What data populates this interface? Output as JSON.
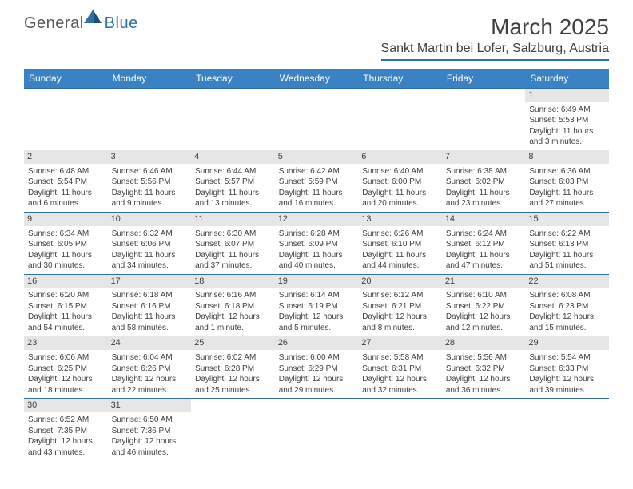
{
  "brand": {
    "text1": "General",
    "text2": "Blue"
  },
  "title": "March 2025",
  "location": "Sankt Martin bei Lofer, Salzburg, Austria",
  "colors": {
    "header_bg": "#3b82c4",
    "border": "#2f6fa8",
    "daynum_bg": "#e6e6e6",
    "text": "#404040",
    "background": "#ffffff"
  },
  "days_of_week": [
    "Sunday",
    "Monday",
    "Tuesday",
    "Wednesday",
    "Thursday",
    "Friday",
    "Saturday"
  ],
  "weeks": [
    [
      null,
      null,
      null,
      null,
      null,
      null,
      {
        "n": "1",
        "sr": "6:49 AM",
        "ss": "5:53 PM",
        "dl": "11 hours and 3 minutes."
      }
    ],
    [
      {
        "n": "2",
        "sr": "6:48 AM",
        "ss": "5:54 PM",
        "dl": "11 hours and 6 minutes."
      },
      {
        "n": "3",
        "sr": "6:46 AM",
        "ss": "5:56 PM",
        "dl": "11 hours and 9 minutes."
      },
      {
        "n": "4",
        "sr": "6:44 AM",
        "ss": "5:57 PM",
        "dl": "11 hours and 13 minutes."
      },
      {
        "n": "5",
        "sr": "6:42 AM",
        "ss": "5:59 PM",
        "dl": "11 hours and 16 minutes."
      },
      {
        "n": "6",
        "sr": "6:40 AM",
        "ss": "6:00 PM",
        "dl": "11 hours and 20 minutes."
      },
      {
        "n": "7",
        "sr": "6:38 AM",
        "ss": "6:02 PM",
        "dl": "11 hours and 23 minutes."
      },
      {
        "n": "8",
        "sr": "6:36 AM",
        "ss": "6:03 PM",
        "dl": "11 hours and 27 minutes."
      }
    ],
    [
      {
        "n": "9",
        "sr": "6:34 AM",
        "ss": "6:05 PM",
        "dl": "11 hours and 30 minutes."
      },
      {
        "n": "10",
        "sr": "6:32 AM",
        "ss": "6:06 PM",
        "dl": "11 hours and 34 minutes."
      },
      {
        "n": "11",
        "sr": "6:30 AM",
        "ss": "6:07 PM",
        "dl": "11 hours and 37 minutes."
      },
      {
        "n": "12",
        "sr": "6:28 AM",
        "ss": "6:09 PM",
        "dl": "11 hours and 40 minutes."
      },
      {
        "n": "13",
        "sr": "6:26 AM",
        "ss": "6:10 PM",
        "dl": "11 hours and 44 minutes."
      },
      {
        "n": "14",
        "sr": "6:24 AM",
        "ss": "6:12 PM",
        "dl": "11 hours and 47 minutes."
      },
      {
        "n": "15",
        "sr": "6:22 AM",
        "ss": "6:13 PM",
        "dl": "11 hours and 51 minutes."
      }
    ],
    [
      {
        "n": "16",
        "sr": "6:20 AM",
        "ss": "6:15 PM",
        "dl": "11 hours and 54 minutes."
      },
      {
        "n": "17",
        "sr": "6:18 AM",
        "ss": "6:16 PM",
        "dl": "11 hours and 58 minutes."
      },
      {
        "n": "18",
        "sr": "6:16 AM",
        "ss": "6:18 PM",
        "dl": "12 hours and 1 minute."
      },
      {
        "n": "19",
        "sr": "6:14 AM",
        "ss": "6:19 PM",
        "dl": "12 hours and 5 minutes."
      },
      {
        "n": "20",
        "sr": "6:12 AM",
        "ss": "6:21 PM",
        "dl": "12 hours and 8 minutes."
      },
      {
        "n": "21",
        "sr": "6:10 AM",
        "ss": "6:22 PM",
        "dl": "12 hours and 12 minutes."
      },
      {
        "n": "22",
        "sr": "6:08 AM",
        "ss": "6:23 PM",
        "dl": "12 hours and 15 minutes."
      }
    ],
    [
      {
        "n": "23",
        "sr": "6:06 AM",
        "ss": "6:25 PM",
        "dl": "12 hours and 18 minutes."
      },
      {
        "n": "24",
        "sr": "6:04 AM",
        "ss": "6:26 PM",
        "dl": "12 hours and 22 minutes."
      },
      {
        "n": "25",
        "sr": "6:02 AM",
        "ss": "6:28 PM",
        "dl": "12 hours and 25 minutes."
      },
      {
        "n": "26",
        "sr": "6:00 AM",
        "ss": "6:29 PM",
        "dl": "12 hours and 29 minutes."
      },
      {
        "n": "27",
        "sr": "5:58 AM",
        "ss": "6:31 PM",
        "dl": "12 hours and 32 minutes."
      },
      {
        "n": "28",
        "sr": "5:56 AM",
        "ss": "6:32 PM",
        "dl": "12 hours and 36 minutes."
      },
      {
        "n": "29",
        "sr": "5:54 AM",
        "ss": "6:33 PM",
        "dl": "12 hours and 39 minutes."
      }
    ],
    [
      {
        "n": "30",
        "sr": "6:52 AM",
        "ss": "7:35 PM",
        "dl": "12 hours and 43 minutes."
      },
      {
        "n": "31",
        "sr": "6:50 AM",
        "ss": "7:36 PM",
        "dl": "12 hours and 46 minutes."
      },
      null,
      null,
      null,
      null,
      null
    ]
  ],
  "labels": {
    "sunrise": "Sunrise:",
    "sunset": "Sunset:",
    "daylight": "Daylight:"
  }
}
